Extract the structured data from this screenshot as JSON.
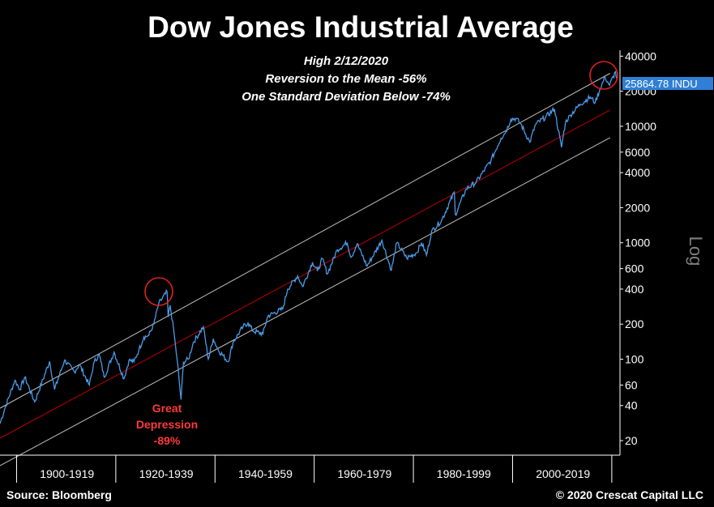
{
  "chart_data": {
    "type": "line",
    "title": "Dow Jones Industrial Average",
    "subtitle_lines": [
      "High 2/12/2020",
      "Reversion to the Mean -56%",
      "One Standard Deviation Below -74%"
    ],
    "y_scale": "log",
    "y_scale_label": "Log",
    "ylim": [
      15,
      45000
    ],
    "xlim": [
      1896,
      2021
    ],
    "y_ticks": [
      20,
      40,
      60,
      100,
      200,
      400,
      600,
      1000,
      2000,
      4000,
      6000,
      10000,
      20000,
      40000
    ],
    "x_period_labels": [
      "1900-1919",
      "1920-1939",
      "1940-1959",
      "1960-1979",
      "1980-1999",
      "2000-2019"
    ],
    "last_value_label": "25864.78 INDU",
    "last_value": 25864.78,
    "grid": false,
    "series": [
      {
        "color": "#4a9be8",
        "points": [
          [
            1896,
            28
          ],
          [
            1897,
            38
          ],
          [
            1899,
            66
          ],
          [
            1900,
            55
          ],
          [
            1901,
            70
          ],
          [
            1903,
            43
          ],
          [
            1906,
            96
          ],
          [
            1907,
            55
          ],
          [
            1909,
            98
          ],
          [
            1911,
            78
          ],
          [
            1912,
            90
          ],
          [
            1914,
            60
          ],
          [
            1915,
            95
          ],
          [
            1916,
            110
          ],
          [
            1917,
            70
          ],
          [
            1919,
            115
          ],
          [
            1921,
            68
          ],
          [
            1922,
            98
          ],
          [
            1923,
            95
          ],
          [
            1924,
            120
          ],
          [
            1925,
            155
          ],
          [
            1926,
            160
          ],
          [
            1927,
            200
          ],
          [
            1928,
            300
          ],
          [
            1929.7,
            380
          ],
          [
            1929.9,
            230
          ],
          [
            1930.3,
            290
          ],
          [
            1931,
            180
          ],
          [
            1931.7,
            100
          ],
          [
            1932.5,
            45
          ],
          [
            1933,
            95
          ],
          [
            1934,
            100
          ],
          [
            1935,
            140
          ],
          [
            1937,
            190
          ],
          [
            1938,
            100
          ],
          [
            1939,
            150
          ],
          [
            1940,
            120
          ],
          [
            1942,
            95
          ],
          [
            1943,
            140
          ],
          [
            1945,
            190
          ],
          [
            1946,
            205
          ],
          [
            1947,
            175
          ],
          [
            1949,
            165
          ],
          [
            1950,
            235
          ],
          [
            1953,
            270
          ],
          [
            1954,
            400
          ],
          [
            1956,
            520
          ],
          [
            1957,
            420
          ],
          [
            1959,
            680
          ],
          [
            1960,
            570
          ],
          [
            1961,
            730
          ],
          [
            1962,
            540
          ],
          [
            1964,
            870
          ],
          [
            1966,
            1000
          ],
          [
            1966.8,
            750
          ],
          [
            1968,
            980
          ],
          [
            1970,
            630
          ],
          [
            1973,
            1050
          ],
          [
            1974.9,
            580
          ],
          [
            1976,
            1000
          ],
          [
            1978,
            740
          ],
          [
            1980,
            820
          ],
          [
            1981,
            1000
          ],
          [
            1982,
            780
          ],
          [
            1983,
            1250
          ],
          [
            1985,
            1550
          ],
          [
            1987.6,
            2720
          ],
          [
            1987.8,
            1740
          ],
          [
            1990,
            2900
          ],
          [
            1992,
            3300
          ],
          [
            1995,
            5100
          ],
          [
            1997,
            7900
          ],
          [
            1998,
            9000
          ],
          [
            1999,
            11500
          ],
          [
            2000,
            11700
          ],
          [
            2001,
            10500
          ],
          [
            2002.8,
            7300
          ],
          [
            2004,
            10400
          ],
          [
            2006,
            12000
          ],
          [
            2007.8,
            14100
          ],
          [
            2009.2,
            6600
          ],
          [
            2010,
            10800
          ],
          [
            2011,
            12500
          ],
          [
            2013,
            15500
          ],
          [
            2015,
            17800
          ],
          [
            2016,
            16000
          ],
          [
            2017,
            21000
          ],
          [
            2018,
            26500
          ],
          [
            2018.9,
            22500
          ],
          [
            2020.1,
            29500
          ],
          [
            2020.3,
            25864.78
          ]
        ]
      },
      {
        "color": "#c00000",
        "points": [
          [
            1896,
            21
          ],
          [
            2019,
            13800
          ]
        ]
      },
      {
        "color": "#bfbfbf",
        "points": [
          [
            1896,
            38
          ],
          [
            2019,
            28500
          ]
        ]
      },
      {
        "color": "#bfbfbf",
        "points": [
          [
            1896,
            12.2
          ],
          [
            2019,
            8000
          ]
        ]
      }
    ],
    "annotations": [
      {
        "text_lines": [
          "Great",
          "Depression",
          "-89%"
        ],
        "color": "#ff3a3a"
      }
    ]
  },
  "footer": {
    "source": "Source: Bloomberg",
    "copyright": "© 2020 Crescat Capital LLC"
  }
}
